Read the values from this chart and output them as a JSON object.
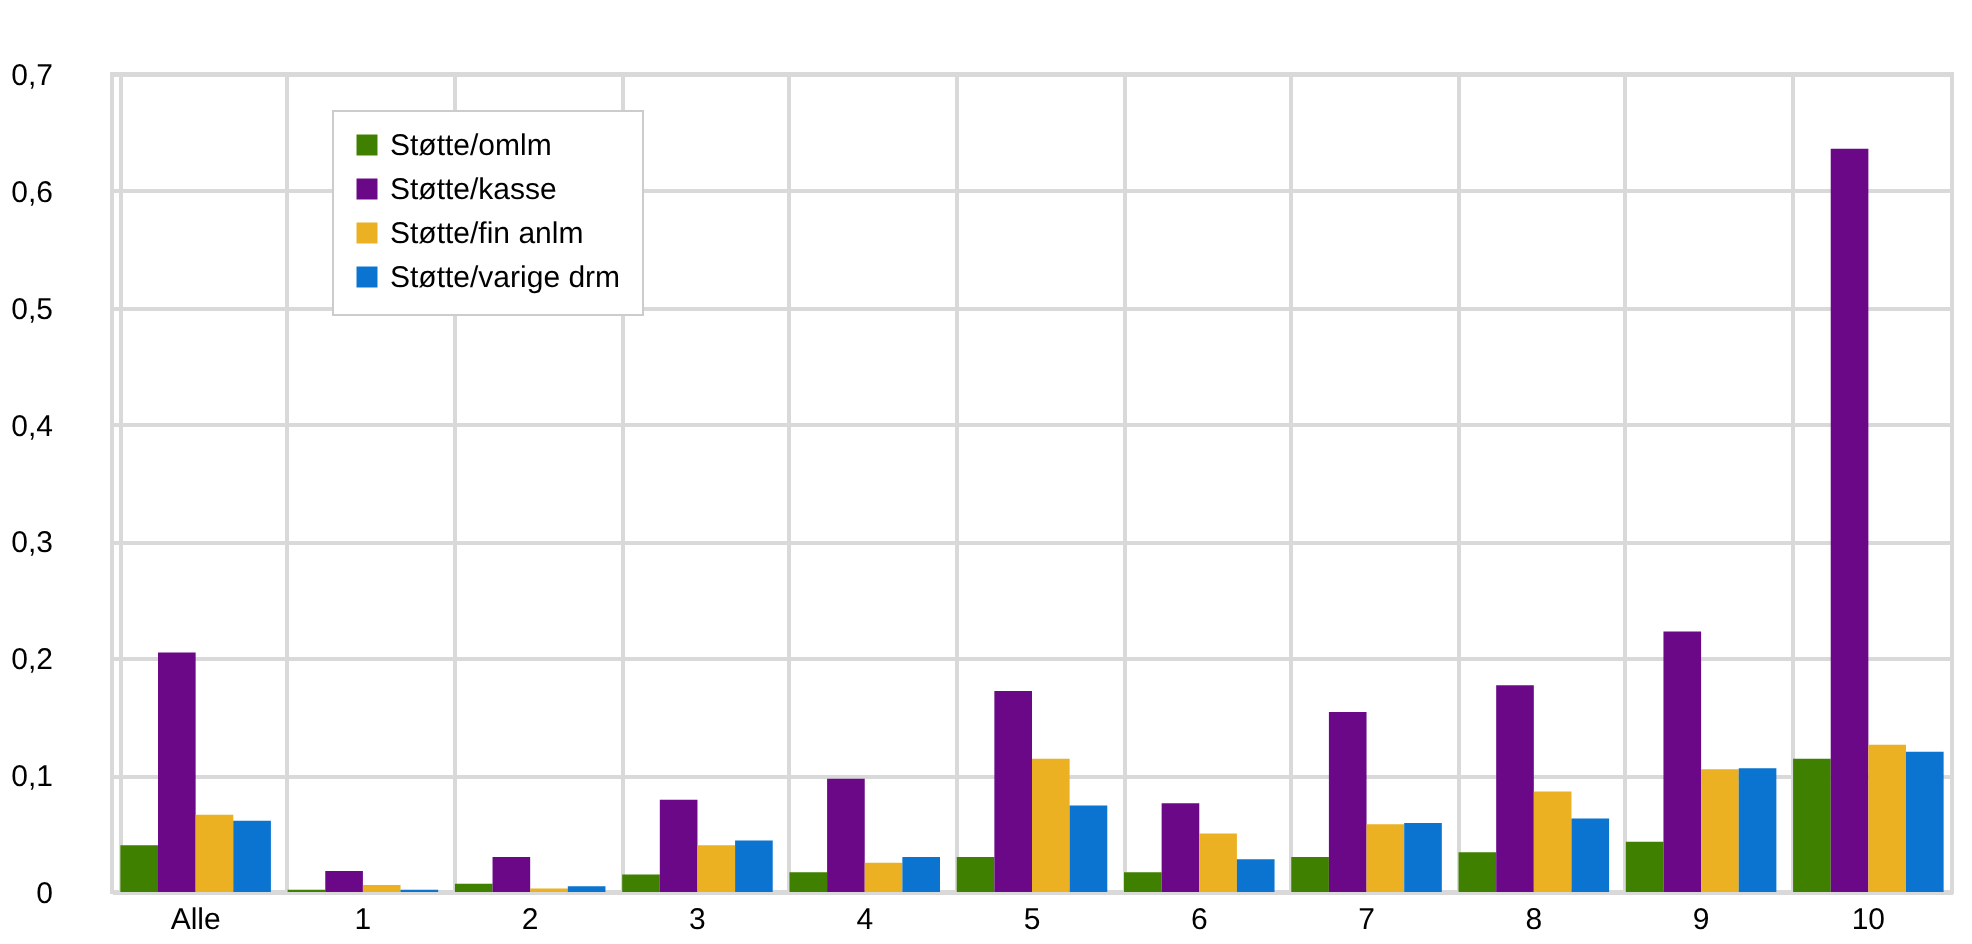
{
  "chart_data": {
    "type": "bar",
    "categories": [
      "Alle",
      "1",
      "2",
      "3",
      "4",
      "5",
      "6",
      "7",
      "8",
      "9",
      "10"
    ],
    "series": [
      {
        "name": "Støtte/omlm",
        "color": "#3f8000",
        "values": [
          0.04,
          0.002,
          0.007,
          0.015,
          0.017,
          0.03,
          0.017,
          0.03,
          0.034,
          0.043,
          0.114
        ]
      },
      {
        "name": "Støtte/kasse",
        "color": "#6a0888",
        "values": [
          0.205,
          0.018,
          0.03,
          0.079,
          0.097,
          0.172,
          0.076,
          0.154,
          0.177,
          0.223,
          0.636
        ]
      },
      {
        "name": "Støtte/fin anlm",
        "color": "#ebb122",
        "values": [
          0.066,
          0.006,
          0.003,
          0.04,
          0.025,
          0.114,
          0.05,
          0.058,
          0.086,
          0.105,
          0.126
        ]
      },
      {
        "name": "Støtte/varige drm",
        "color": "#0a74d0",
        "values": [
          0.061,
          0.002,
          0.005,
          0.044,
          0.03,
          0.074,
          0.028,
          0.059,
          0.063,
          0.106,
          0.12
        ]
      }
    ],
    "ylim": [
      0,
      0.7
    ],
    "yticks": [
      {
        "value": 0,
        "label": "0"
      },
      {
        "value": 0.1,
        "label": "0,1"
      },
      {
        "value": 0.2,
        "label": "0,2"
      },
      {
        "value": 0.3,
        "label": "0,3"
      },
      {
        "value": 0.4,
        "label": "0,4"
      },
      {
        "value": 0.5,
        "label": "0,5"
      },
      {
        "value": 0.6,
        "label": "0,6"
      },
      {
        "value": 0.7,
        "label": "0,7"
      }
    ],
    "grid": true,
    "legend": "top left"
  }
}
